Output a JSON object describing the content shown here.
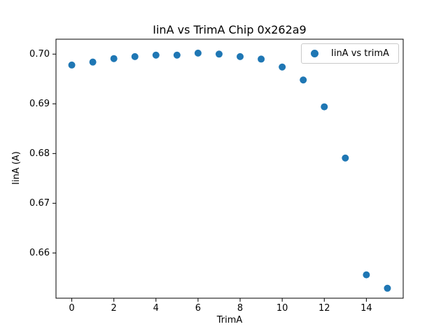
{
  "figure": {
    "title": "IinA vs TrimA Chip 0x262a9",
    "xlabel": "TrimA",
    "ylabel": "IinA (A)",
    "legend_label": "IinA vs trimA"
  },
  "chart_data": {
    "type": "scatter",
    "title": "IinA vs TrimA Chip 0x262a9",
    "xlabel": "TrimA",
    "ylabel": "IinA (A)",
    "legend": [
      "IinA vs trimA"
    ],
    "legend_position": "upper right",
    "grid": false,
    "marker_color": "#1f77b4",
    "x": [
      0,
      1,
      2,
      3,
      4,
      5,
      6,
      7,
      8,
      9,
      10,
      11,
      12,
      13,
      14,
      15
    ],
    "y": [
      0.6978,
      0.6984,
      0.6991,
      0.6995,
      0.6998,
      0.6998,
      0.7002,
      0.7,
      0.6995,
      0.699,
      0.6974,
      0.6948,
      0.6894,
      0.6791,
      0.6556,
      0.6529
    ],
    "xlim": [
      -0.75,
      15.75
    ],
    "ylim": [
      0.6509,
      0.703
    ],
    "xticks": [
      0,
      2,
      4,
      6,
      8,
      10,
      12,
      14
    ],
    "yticks": [
      0.66,
      0.67,
      0.68,
      0.69,
      0.7
    ]
  }
}
